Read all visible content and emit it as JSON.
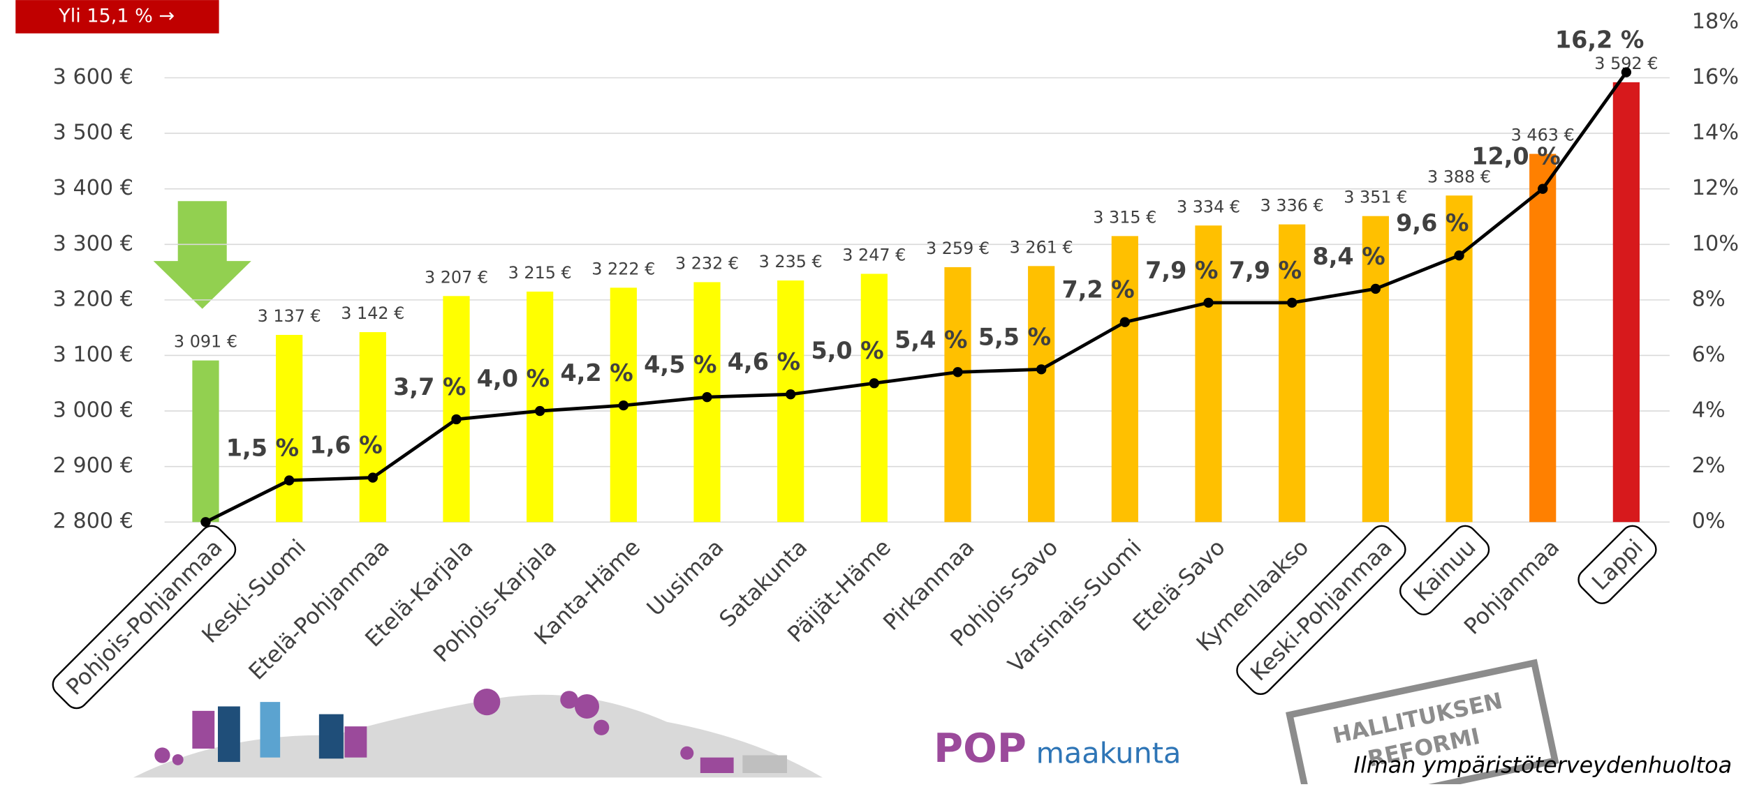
{
  "chart_data": {
    "type": "combo",
    "banner": "Yli 15,1 % →",
    "categories": [
      "Pohjois-Pohjanmaa",
      "Keski-Suomi",
      "Etelä-Pohjanmaa",
      "Etelä-Karjala",
      "Pohjois-Karjala",
      "Kanta-Häme",
      "Uusimaa",
      "Satakunta",
      "Päijät-Häme",
      "Pirkanmaa",
      "Pohjois-Savo",
      "Varsinais-Suomi",
      "Etelä-Savo",
      "Kymenlaakso",
      "Keski-Pohjanmaa",
      "Kainuu",
      "Pohjanmaa",
      "Lappi"
    ],
    "highlight": [
      0,
      14,
      15,
      17
    ],
    "series": [
      {
        "type": "bar",
        "values": [
          3091,
          3137,
          3142,
          3207,
          3215,
          3222,
          3232,
          3235,
          3247,
          3259,
          3261,
          3315,
          3334,
          3336,
          3351,
          3388,
          3463,
          3592
        ],
        "value_labels": [
          "3 091 €",
          "3 137 €",
          "3 142 €",
          "3 207 €",
          "3 215 €",
          "3 222 €",
          "3 232 €",
          "3 235 €",
          "3 247 €",
          "3 259 €",
          "3 261 €",
          "3 315 €",
          "3 334 €",
          "3 336 €",
          "3 351 €",
          "3 388 €",
          "3 463 €",
          "3 592 €"
        ],
        "colors": [
          "#92d050",
          "#ffff00",
          "#ffff00",
          "#ffff00",
          "#ffff00",
          "#ffff00",
          "#ffff00",
          "#ffff00",
          "#ffff00",
          "#ffc000",
          "#ffc000",
          "#ffc000",
          "#ffc000",
          "#ffc000",
          "#ffc000",
          "#ffc000",
          "#ff8000",
          "#d7191c"
        ]
      },
      {
        "type": "line",
        "axis": "y2",
        "color": "#000000",
        "values": [
          0,
          1.5,
          1.6,
          3.7,
          4.0,
          4.2,
          4.5,
          4.6,
          5.0,
          5.4,
          5.5,
          7.2,
          7.9,
          7.9,
          8.4,
          9.6,
          12.0,
          16.2
        ],
        "value_labels": [
          null,
          "1,5 %",
          "1,6 %",
          "3,7 %",
          "4,0 %",
          "4,2 %",
          "4,5 %",
          "4,6 %",
          "5,0 %",
          "5,4 %",
          "5,5 %",
          "7,2 %",
          "7,9 %",
          "7,9 %",
          "8,4 %",
          "9,6 %",
          "12,0 %",
          "16,2 %"
        ]
      }
    ],
    "ylim": [
      2800,
      3700
    ],
    "yticks": [
      {
        "value": 2800,
        "label": "2 800 €"
      },
      {
        "value": 2900,
        "label": "2 900 €"
      },
      {
        "value": 3000,
        "label": "3 000 €"
      },
      {
        "value": 3100,
        "label": "3 100 €"
      },
      {
        "value": 3200,
        "label": "3 200 €"
      },
      {
        "value": 3300,
        "label": "3 300 €"
      },
      {
        "value": 3400,
        "label": "3 400 €"
      },
      {
        "value": 3500,
        "label": "3 500 €"
      },
      {
        "value": 3600,
        "label": "3 600 €"
      }
    ],
    "y2lim": [
      0,
      18
    ],
    "y2ticks": [
      {
        "value": 0,
        "label": "0%"
      },
      {
        "value": 2,
        "label": "2%"
      },
      {
        "value": 4,
        "label": "4%"
      },
      {
        "value": 6,
        "label": "6%"
      },
      {
        "value": 8,
        "label": "8%"
      },
      {
        "value": 10,
        "label": "10%"
      },
      {
        "value": 12,
        "label": "12%"
      },
      {
        "value": 14,
        "label": "14%"
      },
      {
        "value": 16,
        "label": "16%"
      },
      {
        "value": 18,
        "label": "18%"
      }
    ],
    "grid": true,
    "logo": [
      "POP",
      "maakunta"
    ],
    "stamp": [
      "HALLITUKSEN",
      "REFORMI"
    ],
    "footnote": "Ilman ympäristöterveydenhuoltoa"
  }
}
